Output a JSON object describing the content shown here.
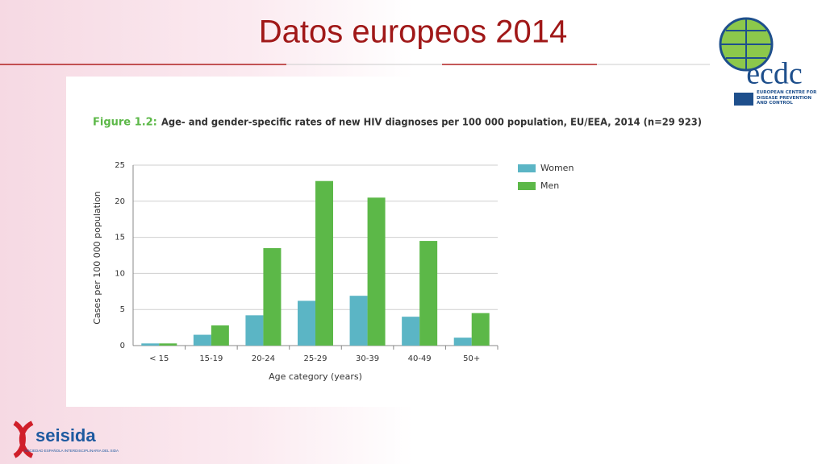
{
  "slide": {
    "title": "Datos europeos 2014",
    "logo_right": {
      "name": "ecdc",
      "subtitle": "EUROPEAN CENTRE FOR DISEASE PREVENTION AND CONTROL"
    },
    "logo_left": {
      "name": "seisida",
      "subtitle": "SOCIEDAD ESPAÑOLA INTERDISCIPLINARIA DEL SIDA"
    }
  },
  "chart_data": {
    "type": "bar",
    "figure_label": "Figure 1.2:",
    "title": "Age- and gender-specific rates of new HIV diagnoses per 100 000 population, EU/EEA, 2014 (n=29 923)",
    "x_label": "Age category (years)",
    "y_label": "Cases per 100 000 population",
    "categories": [
      "< 15",
      "15-19",
      "20-24",
      "25-29",
      "30-39",
      "40-49",
      "50+"
    ],
    "series": [
      {
        "name": "Women",
        "color": "#5bb5c5",
        "values": [
          0.3,
          1.5,
          4.2,
          6.2,
          6.9,
          4.0,
          1.1
        ]
      },
      {
        "name": "Men",
        "color": "#5cb848",
        "values": [
          0.3,
          2.8,
          13.5,
          22.8,
          20.5,
          14.5,
          4.5
        ]
      }
    ],
    "ylim": [
      0,
      25
    ],
    "yticks": [
      0,
      5,
      10,
      15,
      20,
      25
    ],
    "grid": true,
    "legend": "right"
  }
}
